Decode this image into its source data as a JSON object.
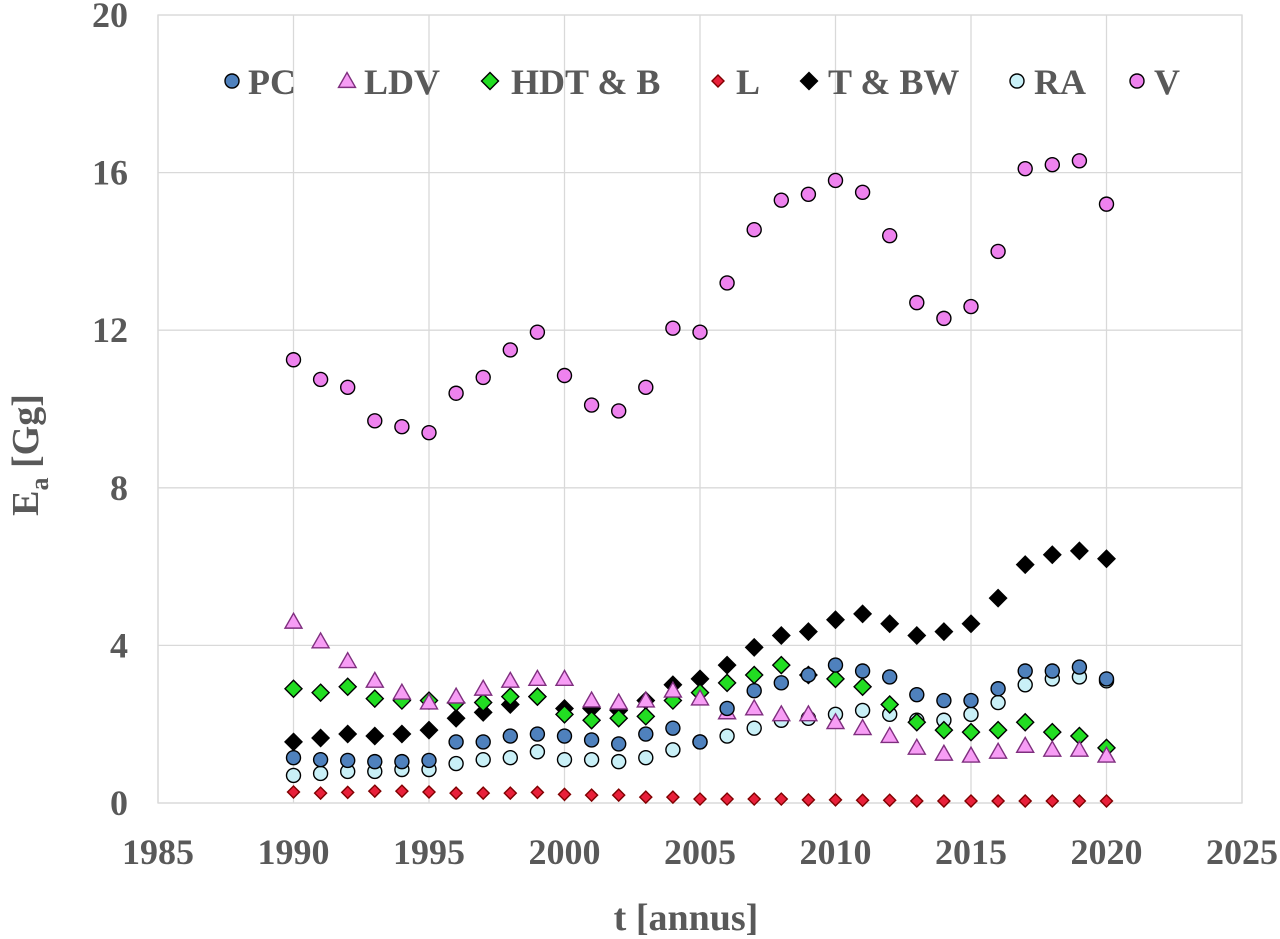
{
  "chart_data": {
    "type": "scatter",
    "xlabel": "t [annus]",
    "ylabel_main": "E",
    "ylabel_sub": "a",
    "ylabel_unit": " [Gg]",
    "xlim": [
      1985,
      2025
    ],
    "ylim": [
      0,
      20
    ],
    "x_ticks": [
      1985,
      1990,
      1995,
      2000,
      2005,
      2010,
      2015,
      2020,
      2025
    ],
    "y_ticks": [
      0,
      4,
      8,
      12,
      16,
      20
    ],
    "grid": true,
    "legend_position": "top",
    "x": [
      1990,
      1991,
      1992,
      1993,
      1994,
      1995,
      1996,
      1997,
      1998,
      1999,
      2000,
      2001,
      2002,
      2003,
      2004,
      2005,
      2006,
      2007,
      2008,
      2009,
      2010,
      2011,
      2012,
      2013,
      2014,
      2015,
      2016,
      2017,
      2018,
      2019,
      2020
    ],
    "series": [
      {
        "name": "PC",
        "marker": "circle",
        "fill": "#4f81bd",
        "stroke": "#000000",
        "values": [
          1.15,
          1.1,
          1.08,
          1.05,
          1.05,
          1.08,
          1.55,
          1.55,
          1.7,
          1.75,
          1.7,
          1.6,
          1.5,
          1.75,
          1.9,
          1.55,
          2.4,
          2.85,
          3.05,
          3.25,
          3.5,
          3.35,
          3.2,
          2.75,
          2.6,
          2.6,
          2.9,
          3.35,
          3.35,
          3.45,
          3.15
        ]
      },
      {
        "name": "LDV",
        "marker": "triangle",
        "fill": "#f79df5",
        "stroke": "#7f2f7f",
        "values": [
          4.6,
          4.1,
          3.6,
          3.1,
          2.8,
          2.55,
          2.7,
          2.9,
          3.1,
          3.15,
          3.15,
          2.6,
          2.55,
          2.6,
          2.85,
          2.65,
          2.3,
          2.4,
          2.25,
          2.25,
          2.05,
          1.9,
          1.7,
          1.4,
          1.25,
          1.2,
          1.3,
          1.45,
          1.35,
          1.35,
          1.2
        ]
      },
      {
        "name": "HDT & B",
        "marker": "diamond",
        "fill": "#22dd22",
        "stroke": "#000000",
        "values": [
          2.9,
          2.8,
          2.95,
          2.65,
          2.6,
          2.6,
          2.55,
          2.55,
          2.7,
          2.7,
          2.25,
          2.1,
          2.15,
          2.2,
          2.6,
          2.8,
          3.05,
          3.25,
          3.5,
          3.25,
          3.15,
          2.95,
          2.5,
          2.05,
          1.85,
          1.8,
          1.85,
          2.05,
          1.8,
          1.7,
          1.4
        ]
      },
      {
        "name": "L",
        "marker": "diamond-small",
        "fill": "#e8203a",
        "stroke": "#7f0000",
        "values": [
          0.28,
          0.25,
          0.27,
          0.3,
          0.3,
          0.28,
          0.25,
          0.25,
          0.25,
          0.27,
          0.22,
          0.2,
          0.2,
          0.15,
          0.15,
          0.1,
          0.1,
          0.1,
          0.1,
          0.08,
          0.08,
          0.07,
          0.07,
          0.05,
          0.05,
          0.05,
          0.05,
          0.05,
          0.05,
          0.05,
          0.05
        ]
      },
      {
        "name": "T & BW",
        "marker": "diamond",
        "fill": "#000000",
        "stroke": "#000000",
        "values": [
          1.55,
          1.65,
          1.75,
          1.7,
          1.75,
          1.85,
          2.15,
          2.3,
          2.5,
          2.7,
          2.4,
          2.4,
          2.35,
          2.6,
          3.0,
          3.15,
          3.5,
          3.95,
          4.25,
          4.35,
          4.65,
          4.8,
          4.55,
          4.25,
          4.35,
          4.55,
          5.2,
          6.05,
          6.3,
          6.4,
          6.2
        ]
      },
      {
        "name": "RA",
        "marker": "circle",
        "fill": "#c9f0f7",
        "stroke": "#000000",
        "values": [
          0.7,
          0.75,
          0.8,
          0.8,
          0.85,
          0.85,
          1.0,
          1.1,
          1.15,
          1.3,
          1.1,
          1.1,
          1.05,
          1.15,
          1.35,
          1.55,
          1.7,
          1.9,
          2.1,
          2.15,
          2.25,
          2.35,
          2.25,
          2.1,
          2.1,
          2.25,
          2.55,
          3.0,
          3.15,
          3.2,
          3.1
        ]
      },
      {
        "name": "V",
        "marker": "circle",
        "fill": "#ee82ee",
        "stroke": "#000000",
        "values": [
          11.25,
          10.75,
          10.55,
          9.7,
          9.55,
          9.4,
          10.4,
          10.8,
          11.5,
          11.95,
          10.85,
          10.1,
          9.95,
          10.55,
          12.05,
          11.95,
          13.2,
          14.55,
          15.3,
          15.45,
          15.8,
          15.5,
          14.4,
          12.7,
          12.3,
          12.6,
          14.0,
          16.1,
          16.2,
          16.3,
          15.2
        ]
      }
    ]
  }
}
